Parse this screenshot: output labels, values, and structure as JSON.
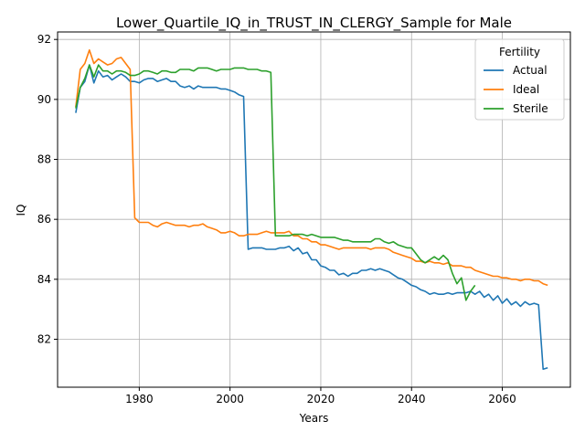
{
  "chart_data": {
    "type": "line",
    "title": "Lower_Quartile_IQ_in_TRUST_IN_CLERGY_Sample for Male",
    "xlabel": "Years",
    "ylabel": "IQ",
    "xlim": [
      1962,
      2075
    ],
    "ylim": [
      80.4,
      92.25
    ],
    "xticks": [
      1980,
      2000,
      2020,
      2040,
      2060
    ],
    "yticks": [
      82,
      84,
      86,
      88,
      90,
      92
    ],
    "grid": true,
    "legend": {
      "title": "Fertility",
      "position": "top-right"
    },
    "series": [
      {
        "name": "Actual",
        "color": "#1f77b4",
        "x": [
          1966,
          1967,
          1968,
          1969,
          1970,
          1971,
          1972,
          1973,
          1974,
          1975,
          1976,
          1977,
          1978,
          1979,
          1980,
          1981,
          1982,
          1983,
          1984,
          1985,
          1986,
          1987,
          1988,
          1989,
          1990,
          1991,
          1992,
          1993,
          1994,
          1995,
          1996,
          1997,
          1998,
          1999,
          2000,
          2001,
          2002,
          2003,
          2004,
          2005,
          2006,
          2007,
          2008,
          2009,
          2010,
          2011,
          2012,
          2013,
          2014,
          2015,
          2016,
          2017,
          2018,
          2019,
          2020,
          2021,
          2022,
          2023,
          2024,
          2025,
          2026,
          2027,
          2028,
          2029,
          2030,
          2031,
          2032,
          2033,
          2034,
          2035,
          2036,
          2037,
          2038,
          2039,
          2040,
          2041,
          2042,
          2043,
          2044,
          2045,
          2046,
          2047,
          2048,
          2049,
          2050,
          2051,
          2052,
          2053,
          2054,
          2055,
          2056,
          2057,
          2058,
          2059,
          2060,
          2061,
          2062,
          2063,
          2064,
          2065,
          2066,
          2067,
          2068,
          2069,
          2070
        ],
        "y": [
          89.55,
          90.4,
          90.6,
          91.15,
          90.55,
          90.95,
          90.75,
          90.8,
          90.65,
          90.75,
          90.85,
          90.75,
          90.6,
          90.6,
          90.55,
          90.65,
          90.7,
          90.7,
          90.6,
          90.65,
          90.7,
          90.6,
          90.6,
          90.45,
          90.4,
          90.45,
          90.35,
          90.45,
          90.4,
          90.4,
          90.4,
          90.4,
          90.35,
          90.35,
          90.3,
          90.25,
          90.15,
          90.1,
          85.0,
          85.05,
          85.05,
          85.05,
          85.0,
          85.0,
          85.0,
          85.05,
          85.05,
          85.1,
          84.95,
          85.05,
          84.85,
          84.9,
          84.65,
          84.65,
          84.45,
          84.4,
          84.3,
          84.3,
          84.15,
          84.2,
          84.1,
          84.2,
          84.2,
          84.3,
          84.3,
          84.35,
          84.3,
          84.35,
          84.3,
          84.25,
          84.15,
          84.05,
          84.0,
          83.9,
          83.8,
          83.75,
          83.65,
          83.6,
          83.5,
          83.55,
          83.5,
          83.5,
          83.55,
          83.5,
          83.55,
          83.55,
          83.55,
          83.6,
          83.5,
          83.6,
          83.4,
          83.5,
          83.3,
          83.45,
          83.2,
          83.35,
          83.15,
          83.25,
          83.1,
          83.25,
          83.15,
          83.2,
          83.15,
          81.0,
          81.05
        ]
      },
      {
        "name": "Ideal",
        "color": "#ff7f0e",
        "x": [
          1966,
          1967,
          1968,
          1969,
          1970,
          1971,
          1972,
          1973,
          1974,
          1975,
          1976,
          1977,
          1978,
          1979,
          1980,
          1981,
          1982,
          1983,
          1984,
          1985,
          1986,
          1987,
          1988,
          1989,
          1990,
          1991,
          1992,
          1993,
          1994,
          1995,
          1996,
          1997,
          1998,
          1999,
          2000,
          2001,
          2002,
          2003,
          2004,
          2005,
          2006,
          2007,
          2008,
          2009,
          2010,
          2011,
          2012,
          2013,
          2014,
          2015,
          2016,
          2017,
          2018,
          2019,
          2020,
          2021,
          2022,
          2023,
          2024,
          2025,
          2026,
          2027,
          2028,
          2029,
          2030,
          2031,
          2032,
          2033,
          2034,
          2035,
          2036,
          2037,
          2038,
          2039,
          2040,
          2041,
          2042,
          2043,
          2044,
          2045,
          2046,
          2047,
          2048,
          2049,
          2050,
          2051,
          2052,
          2053,
          2054,
          2055,
          2056,
          2057,
          2058,
          2059,
          2060,
          2061,
          2062,
          2063,
          2064,
          2065,
          2066,
          2067,
          2068,
          2069,
          2070
        ],
        "y": [
          89.75,
          91.0,
          91.2,
          91.65,
          91.2,
          91.35,
          91.25,
          91.15,
          91.2,
          91.35,
          91.4,
          91.2,
          91.0,
          86.05,
          85.9,
          85.9,
          85.9,
          85.8,
          85.75,
          85.85,
          85.9,
          85.85,
          85.8,
          85.8,
          85.8,
          85.75,
          85.8,
          85.8,
          85.85,
          85.75,
          85.7,
          85.65,
          85.55,
          85.55,
          85.6,
          85.55,
          85.45,
          85.45,
          85.5,
          85.5,
          85.5,
          85.55,
          85.6,
          85.55,
          85.55,
          85.55,
          85.55,
          85.6,
          85.45,
          85.45,
          85.35,
          85.35,
          85.25,
          85.25,
          85.15,
          85.15,
          85.1,
          85.05,
          85.0,
          85.05,
          85.05,
          85.05,
          85.05,
          85.05,
          85.05,
          85.0,
          85.05,
          85.05,
          85.05,
          85.0,
          84.9,
          84.85,
          84.8,
          84.75,
          84.7,
          84.6,
          84.6,
          84.55,
          84.6,
          84.55,
          84.55,
          84.5,
          84.55,
          84.45,
          84.45,
          84.45,
          84.4,
          84.4,
          84.3,
          84.25,
          84.2,
          84.15,
          84.1,
          84.1,
          84.05,
          84.05,
          84.0,
          84.0,
          83.95,
          84.0,
          84.0,
          83.95,
          83.95,
          83.85,
          83.8
        ]
      },
      {
        "name": "Sterile",
        "color": "#2ca02c",
        "x": [
          1966,
          1967,
          1968,
          1969,
          1970,
          1971,
          1972,
          1973,
          1974,
          1975,
          1976,
          1977,
          1978,
          1979,
          1980,
          1981,
          1982,
          1983,
          1984,
          1985,
          1986,
          1987,
          1988,
          1989,
          1990,
          1991,
          1992,
          1993,
          1994,
          1995,
          1996,
          1997,
          1998,
          1999,
          2000,
          2001,
          2002,
          2003,
          2004,
          2005,
          2006,
          2007,
          2008,
          2009,
          2010,
          2011,
          2012,
          2013,
          2014,
          2015,
          2016,
          2017,
          2018,
          2019,
          2020,
          2021,
          2022,
          2023,
          2024,
          2025,
          2026,
          2027,
          2028,
          2029,
          2030,
          2031,
          2032,
          2033,
          2034,
          2035,
          2036,
          2037,
          2038,
          2039,
          2040,
          2041,
          2042,
          2043,
          2044,
          2045,
          2046,
          2047,
          2048,
          2049,
          2050,
          2051,
          2052,
          2053,
          2054
        ],
        "y": [
          89.7,
          90.4,
          90.7,
          91.15,
          90.75,
          91.15,
          90.95,
          90.95,
          90.85,
          90.95,
          90.95,
          90.9,
          90.8,
          90.8,
          90.85,
          90.95,
          90.95,
          90.9,
          90.85,
          90.95,
          90.95,
          90.9,
          90.9,
          91.0,
          91.0,
          91.0,
          90.95,
          91.05,
          91.05,
          91.05,
          91.0,
          90.95,
          91.0,
          91.0,
          91.0,
          91.05,
          91.05,
          91.05,
          91.0,
          91.0,
          91.0,
          90.95,
          90.95,
          90.9,
          85.45,
          85.45,
          85.45,
          85.45,
          85.5,
          85.5,
          85.5,
          85.45,
          85.5,
          85.45,
          85.4,
          85.4,
          85.4,
          85.4,
          85.35,
          85.3,
          85.3,
          85.25,
          85.25,
          85.25,
          85.25,
          85.25,
          85.35,
          85.35,
          85.25,
          85.2,
          85.25,
          85.15,
          85.1,
          85.05,
          85.05,
          84.85,
          84.65,
          84.55,
          84.65,
          84.75,
          84.65,
          84.8,
          84.65,
          84.2,
          83.85,
          84.05,
          83.3,
          83.6,
          83.8
        ]
      }
    ]
  }
}
